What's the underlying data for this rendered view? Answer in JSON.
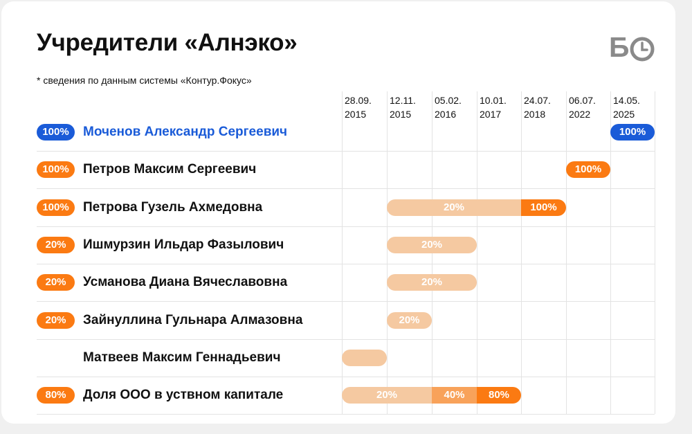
{
  "title": "Учредители «Алнэко»",
  "note": "* сведения по данным системы «Контур.Фокус»",
  "logo": {
    "letter": "Б",
    "icon": "clock-icon"
  },
  "colors": {
    "blue": "#1a5bd8",
    "orange": "#fb7a12",
    "light_orange": "#f5c9a1",
    "mid_orange": "#f8a25a",
    "text": "#111111"
  },
  "chart_data": {
    "type": "table",
    "dates": [
      {
        "line1": "28.09.",
        "line2": "2015"
      },
      {
        "line1": "12.11.",
        "line2": "2015"
      },
      {
        "line1": "05.02.",
        "line2": "2016"
      },
      {
        "line1": "10.01.",
        "line2": "2017"
      },
      {
        "line1": "24.07.",
        "line2": "2018"
      },
      {
        "line1": "06.07.",
        "line2": "2022"
      },
      {
        "line1": "14.05.",
        "line2": "2025"
      }
    ],
    "rows": [
      {
        "name": "Моченов Александр Сергеевич",
        "share": "100%",
        "pill_color": "blue",
        "highlight": true,
        "segments": [
          {
            "from": 6,
            "to": 7,
            "label": "100%",
            "color": "blue",
            "round_left": true,
            "round_right": true
          }
        ]
      },
      {
        "name": "Петров Максим Сергеевич",
        "share": "100%",
        "pill_color": "orange",
        "highlight": false,
        "segments": [
          {
            "from": 5,
            "to": 6,
            "label": "100%",
            "color": "orange",
            "round_left": true,
            "round_right": true
          }
        ]
      },
      {
        "name": "Петрова Гузель Ахмедовна",
        "share": "100%",
        "pill_color": "orange",
        "highlight": false,
        "segments": [
          {
            "from": 1,
            "to": 4,
            "label": "20%",
            "color": "light_orange",
            "round_left": true,
            "round_right": false
          },
          {
            "from": 4,
            "to": 5,
            "label": "100%",
            "color": "orange",
            "round_left": false,
            "round_right": true
          }
        ]
      },
      {
        "name": "Ишмурзин Ильдар Фазылович",
        "share": "20%",
        "pill_color": "orange",
        "highlight": false,
        "segments": [
          {
            "from": 1,
            "to": 3,
            "label": "20%",
            "color": "light_orange",
            "round_left": true,
            "round_right": true
          }
        ]
      },
      {
        "name": "Усманова Диана Вячеславовна",
        "share": "20%",
        "pill_color": "orange",
        "highlight": false,
        "segments": [
          {
            "from": 1,
            "to": 3,
            "label": "20%",
            "color": "light_orange",
            "round_left": true,
            "round_right": true
          }
        ]
      },
      {
        "name": "Зайнуллина Гульнара Алмазовна",
        "share": "20%",
        "pill_color": "orange",
        "highlight": false,
        "segments": [
          {
            "from": 1,
            "to": 2,
            "label": "20%",
            "color": "light_orange",
            "round_left": true,
            "round_right": true
          }
        ]
      },
      {
        "name": "Матвеев Максим Геннадьевич",
        "share": "",
        "pill_color": "",
        "highlight": false,
        "segments": [
          {
            "from": 0,
            "to": 1,
            "label": "",
            "color": "light_orange",
            "round_left": true,
            "round_right": true
          }
        ]
      },
      {
        "name": "Доля ООО в уствном капитале",
        "share": "80%",
        "pill_color": "orange",
        "highlight": false,
        "segments": [
          {
            "from": 0,
            "to": 2,
            "label": "20%",
            "color": "light_orange",
            "round_left": true,
            "round_right": false
          },
          {
            "from": 2,
            "to": 3,
            "label": "40%",
            "color": "mid_orange",
            "round_left": false,
            "round_right": false
          },
          {
            "from": 3,
            "to": 4,
            "label": "80%",
            "color": "orange",
            "round_left": false,
            "round_right": true
          }
        ]
      }
    ]
  }
}
